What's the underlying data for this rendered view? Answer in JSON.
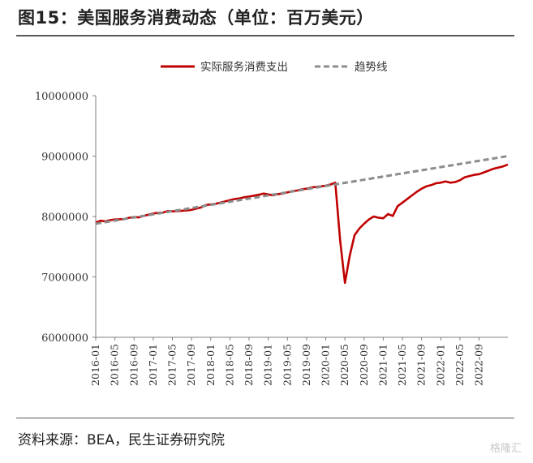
{
  "header": {
    "title": "图15：美国服务消费动态（单位：百万美元）"
  },
  "footer": {
    "source": "资料来源：BEA，民生证券研究院",
    "watermark": "格隆汇"
  },
  "chart_data": {
    "type": "line",
    "title": "图15：美国服务消费动态（单位：百万美元）",
    "ylim": [
      6000000,
      10000000
    ],
    "y_ticks": [
      "6000000",
      "7000000",
      "8000000",
      "9000000",
      "10000000"
    ],
    "x_tick_labels": [
      "2016-01",
      "2016-05",
      "2016-09",
      "2017-01",
      "2017-05",
      "2017-09",
      "2018-01",
      "2018-05",
      "2018-09",
      "2019-01",
      "2019-05",
      "2019-09",
      "2020-01",
      "2020-05",
      "2020-09",
      "2021-01",
      "2021-05",
      "2021-09",
      "2022-01",
      "2022-05",
      "2022-09"
    ],
    "legend_position": "top-center",
    "series": [
      {
        "name": "实际服务消费支出",
        "color": "#c00000",
        "style": "solid",
        "values": [
          7900000,
          7930000,
          7920000,
          7940000,
          7950000,
          7955000,
          7960000,
          7980000,
          7990000,
          7985000,
          8010000,
          8030000,
          8050000,
          8060000,
          8065000,
          8090000,
          8085000,
          8090000,
          8095000,
          8100000,
          8110000,
          8130000,
          8150000,
          8190000,
          8200000,
          8210000,
          8230000,
          8250000,
          8270000,
          8290000,
          8300000,
          8320000,
          8330000,
          8345000,
          8360000,
          8380000,
          8365000,
          8350000,
          8370000,
          8380000,
          8400000,
          8420000,
          8430000,
          8450000,
          8460000,
          8480000,
          8490000,
          8500000,
          8510000,
          8530000,
          8560000,
          7600000,
          6900000,
          7350000,
          7690000,
          7800000,
          7880000,
          7950000,
          8000000,
          7980000,
          7970000,
          8040000,
          8010000,
          8170000,
          8230000,
          8290000,
          8350000,
          8410000,
          8460000,
          8500000,
          8520000,
          8550000,
          8560000,
          8580000,
          8560000,
          8570000,
          8600000,
          8650000,
          8670000,
          8690000,
          8700000,
          8730000,
          8760000,
          8790000,
          8810000,
          8830000,
          8860000
        ]
      },
      {
        "name": "趋势线",
        "color": "#8c8c8c",
        "style": "dashed",
        "start": 7880000,
        "end": 9000000
      }
    ]
  }
}
